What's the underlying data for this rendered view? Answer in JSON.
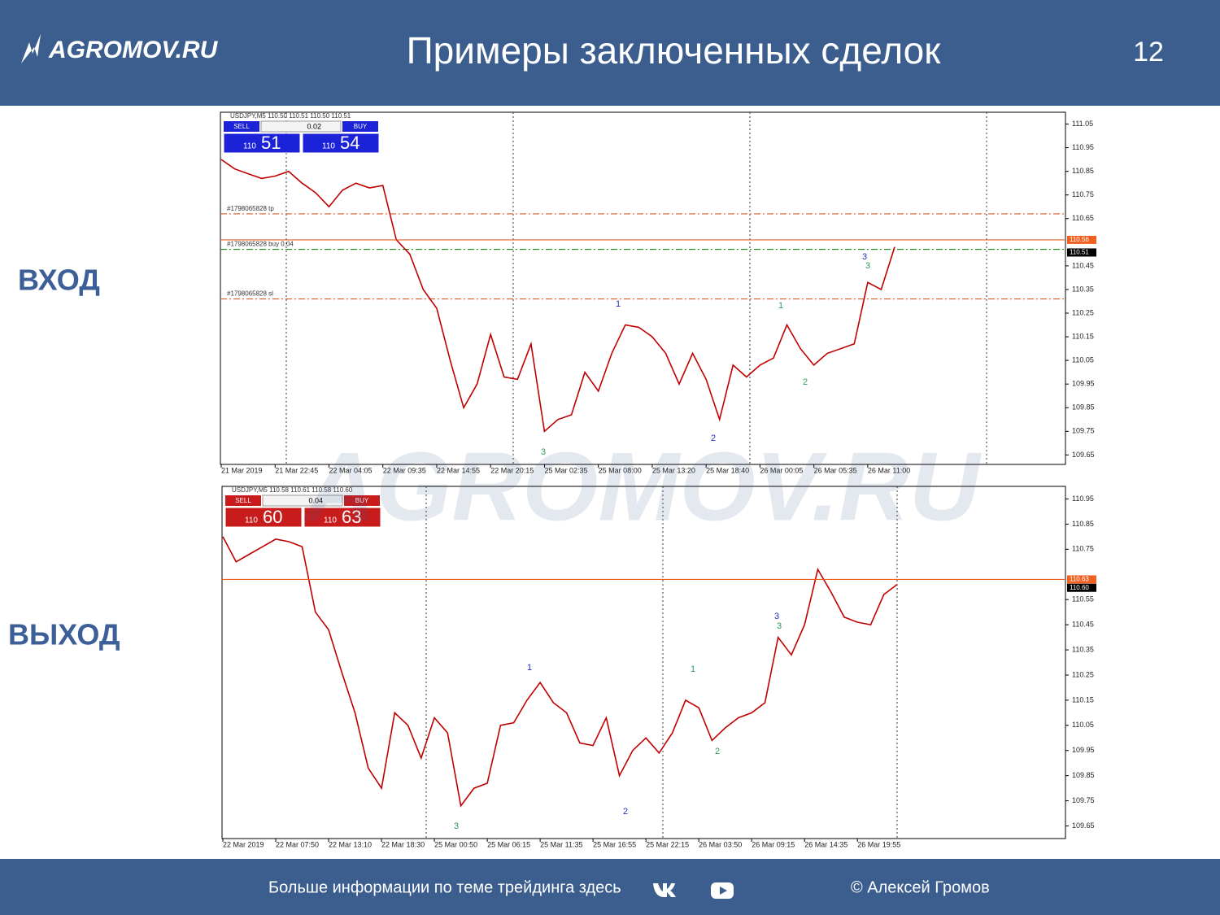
{
  "header": {
    "logo": "AGROMOV.RU",
    "title": "Примеры заключенных сделок",
    "page": "12"
  },
  "side_labels": {
    "entry": "ВХОД",
    "exit": "ВЫХОД"
  },
  "watermark": "AGROMOV.RU",
  "footer": {
    "info": "Больше информации по теме трейдинга здесь",
    "author": "© Алексей Громов"
  },
  "chart_data": [
    {
      "type": "line",
      "symbol": "USDJPY,M5  110.50 110.51 110.50 110.51",
      "panel": {
        "color": "#1c22d8",
        "sell": "SELL",
        "lot": "0.02",
        "buy": "BUY",
        "bid_small": "110",
        "bid_big": "51",
        "ask_small": "110",
        "ask_big": "54"
      },
      "categories": [
        "21 Mar 2019",
        null,
        null,
        null,
        "21 Mar 22:45",
        null,
        null,
        null,
        "22 Mar 04:05",
        null,
        null,
        null,
        "22 Mar 09:35",
        null,
        null,
        null,
        "22 Mar 14:55",
        null,
        null,
        null,
        "22 Mar 20:15",
        null,
        null,
        null,
        "25 Mar 02:35",
        null,
        null,
        null,
        "25 Mar 08:00",
        null,
        null,
        null,
        "25 Mar 13:20",
        null,
        null,
        null,
        "25 Mar 18:40",
        null,
        null,
        null,
        "26 Mar 00:05",
        null,
        null,
        null,
        "26 Mar 05:35",
        null,
        null,
        null,
        "26 Mar 11:00",
        null,
        null
      ],
      "values": [
        110.9,
        110.86,
        110.84,
        110.82,
        110.83,
        110.85,
        110.8,
        110.76,
        110.7,
        110.77,
        110.8,
        110.78,
        110.79,
        110.56,
        110.5,
        110.35,
        110.27,
        110.05,
        109.85,
        109.95,
        110.16,
        109.98,
        109.97,
        110.12,
        109.75,
        109.8,
        109.82,
        110.0,
        109.92,
        110.08,
        110.2,
        110.19,
        110.15,
        110.08,
        109.95,
        110.08,
        109.97,
        109.8,
        110.03,
        109.98,
        110.03,
        110.06,
        110.2,
        110.1,
        110.03,
        110.08,
        110.1,
        110.12,
        110.38,
        110.35,
        110.53
      ],
      "color": "#c00000",
      "ylim": [
        109.61,
        111.1
      ],
      "yticks": [
        109.65,
        109.75,
        109.85,
        109.95,
        110.05,
        110.15,
        110.25,
        110.35,
        110.45,
        110.65,
        110.75,
        110.85,
        110.95,
        111.05
      ],
      "levels": [
        {
          "label": "#1798065828 tp",
          "value": 110.67,
          "color": "#e05a20"
        },
        {
          "label": "#1798065828 buy 0.04",
          "value": 110.52,
          "color": "#1a8a1a"
        },
        {
          "label": "#1798065828 sl",
          "value": 110.31,
          "color": "#e05a20"
        }
      ],
      "bid": {
        "value": 110.56,
        "color": "#f06020"
      },
      "last": 110.51,
      "annotations": [
        {
          "text": "3",
          "color": "#2a9a5a"
        },
        {
          "text": "1",
          "color": "#2030c0"
        },
        {
          "text": "2",
          "color": "#2030c0"
        },
        {
          "text": "1",
          "color": "#2a9a5a"
        },
        {
          "text": "2",
          "color": "#2a9a5a"
        },
        {
          "text": "3",
          "color": "#2030c0"
        },
        {
          "text": "3",
          "color": "#2a9a5a"
        }
      ]
    },
    {
      "type": "line",
      "symbol": "USDJPY,M5  110.58 110.61 110.58 110.60",
      "panel": {
        "color": "#c81c1c",
        "sell": "SELL",
        "lot": "0.04",
        "buy": "BUY",
        "bid_small": "110",
        "bid_big": "60",
        "ask_small": "110",
        "ask_big": "63"
      },
      "categories": [
        "22 Mar 2019",
        null,
        null,
        null,
        "22 Mar 07:50",
        null,
        null,
        null,
        "22 Mar 13:10",
        null,
        null,
        null,
        "22 Mar 18:30",
        null,
        null,
        null,
        "25 Mar 00:50",
        null,
        null,
        null,
        "25 Mar 06:15",
        null,
        null,
        null,
        "25 Mar 11:35",
        null,
        null,
        null,
        "25 Mar 16:55",
        null,
        null,
        null,
        "25 Mar 22:15",
        null,
        null,
        null,
        "26 Mar 03:50",
        null,
        null,
        null,
        "26 Mar 09:15",
        null,
        null,
        null,
        "26 Mar 14:35",
        null,
        null,
        null,
        "26 Mar 19:55",
        null,
        null,
        null
      ],
      "values": [
        110.8,
        110.7,
        110.73,
        110.76,
        110.79,
        110.78,
        110.76,
        110.5,
        110.43,
        110.26,
        110.1,
        109.88,
        109.8,
        110.1,
        110.05,
        109.92,
        110.08,
        110.02,
        109.73,
        109.8,
        109.82,
        110.05,
        110.06,
        110.15,
        110.22,
        110.14,
        110.1,
        109.98,
        109.97,
        110.08,
        109.85,
        109.95,
        110.0,
        109.94,
        110.02,
        110.15,
        110.12,
        109.99,
        110.04,
        110.08,
        110.1,
        110.14,
        110.4,
        110.33,
        110.45,
        110.67,
        110.58,
        110.48,
        110.46,
        110.45,
        110.57,
        110.61
      ],
      "color": "#c00000",
      "ylim": [
        109.6,
        111.0
      ],
      "yticks": [
        109.65,
        109.75,
        109.85,
        109.95,
        110.05,
        110.15,
        110.25,
        110.35,
        110.45,
        110.55,
        110.75,
        110.85,
        110.95
      ],
      "levels": [],
      "bid": {
        "value": 110.63,
        "color": "#f06020"
      },
      "last": {
        "value": 110.6,
        "label": "110.60"
      },
      "annotations": [
        {
          "text": "3",
          "color": "#2a9a5a"
        },
        {
          "text": "1",
          "color": "#2030c0"
        },
        {
          "text": "2",
          "color": "#2030c0"
        },
        {
          "text": "1",
          "color": "#2a9a5a"
        },
        {
          "text": "2",
          "color": "#2a9a5a"
        },
        {
          "text": "3",
          "color": "#2030c0"
        },
        {
          "text": "3",
          "color": "#2a9a5a"
        }
      ]
    }
  ]
}
